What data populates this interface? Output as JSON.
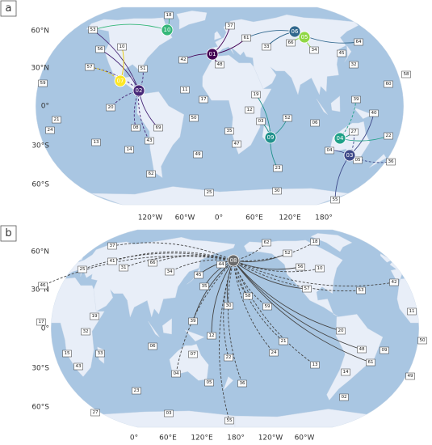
{
  "panels": [
    {
      "label": "a",
      "lat_labels": [
        "60°N",
        "30°N",
        "0°",
        "30°S",
        "60°S"
      ],
      "lon_labels": [
        "120°W",
        "60°W",
        "0°",
        "60°E",
        "120°E",
        "180°"
      ],
      "hubs": [
        {
          "label": "01",
          "color": "#440154"
        },
        {
          "label": "02",
          "color": "#482878"
        },
        {
          "label": "03",
          "color": "#3e4989"
        },
        {
          "label": "04",
          "color": "#1fa187"
        },
        {
          "label": "05",
          "color": "#8fd744"
        },
        {
          "label": "06",
          "color": "#31688e"
        },
        {
          "label": "07",
          "color": "#fde725"
        },
        {
          "label": "09",
          "color": "#21918c"
        },
        {
          "label": "10",
          "color": "#35b779"
        }
      ],
      "sites": [
        "18",
        "53",
        "37",
        "61",
        "64",
        "56",
        "10",
        "33",
        "66",
        "34",
        "45",
        "32",
        "42",
        "48",
        "57",
        "51",
        "58",
        "59",
        "11",
        "60",
        "17",
        "39",
        "20",
        "12",
        "19",
        "52",
        "40",
        "50",
        "21",
        "08",
        "69",
        "35",
        "24",
        "03",
        "27",
        "22",
        "43",
        "47",
        "13",
        "14",
        "49",
        "04",
        "05",
        "36",
        "23",
        "62",
        "25",
        "30",
        "55",
        "06"
      ]
    },
    {
      "label": "b",
      "lat_labels": [
        "60°N",
        "30°N",
        "0°",
        "30°S",
        "60°S"
      ],
      "lon_labels": [
        "0°",
        "60°E",
        "120°E",
        "180°",
        "120°W",
        "60°W"
      ],
      "hubs": [
        {
          "label": "08",
          "color": "#6b6b6b"
        }
      ],
      "sites": [
        "37",
        "18",
        "41",
        "62",
        "66",
        "25",
        "31",
        "34",
        "44",
        "52",
        "56",
        "10",
        "42",
        "45",
        "35",
        "46",
        "57",
        "53",
        "30",
        "58",
        "59",
        "11",
        "19",
        "17",
        "32",
        "39",
        "12",
        "24",
        "21",
        "20",
        "06",
        "09",
        "50",
        "15",
        "33",
        "13",
        "07",
        "22",
        "48",
        "61",
        "43",
        "14",
        "36",
        "04",
        "05",
        "49",
        "23",
        "02",
        "03",
        "27",
        "55"
      ]
    }
  ]
}
